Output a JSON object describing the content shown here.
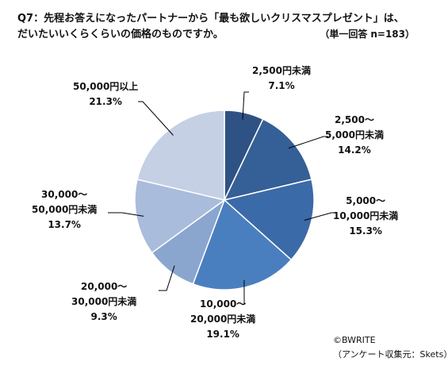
{
  "title_lines": [
    "Q7：先程お答えになったパートナーから「最も欲しいクリスマスプレゼント」は、",
    "だいたいいくらくらいの価格のものですか。"
  ],
  "note": {
    "type": "（単一回答",
    "n": "n=183）"
  },
  "chart_data": {
    "type": "pie",
    "title": "",
    "slices": [
      {
        "label_lines": [
          "2,500円未満"
        ],
        "value": 7.1,
        "value_label": "7.1%",
        "color": "#2f5284"
      },
      {
        "label_lines": [
          "2,500～",
          "5,000円未満"
        ],
        "value": 14.2,
        "value_label": "14.2%",
        "color": "#355f97"
      },
      {
        "label_lines": [
          "5,000～",
          "10,000円未満"
        ],
        "value": 15.3,
        "value_label": "15.3%",
        "color": "#3b6aa8"
      },
      {
        "label_lines": [
          "10,000～",
          "20,000円未満"
        ],
        "value": 19.1,
        "value_label": "19.1%",
        "color": "#4a7fbf"
      },
      {
        "label_lines": [
          "20,000～",
          "30,000円未満"
        ],
        "value": 9.3,
        "value_label": "9.3%",
        "color": "#8aa6cf"
      },
      {
        "label_lines": [
          "30,000～",
          "50,000円未満"
        ],
        "value": 13.7,
        "value_label": "13.7%",
        "color": "#aabcdb"
      },
      {
        "label_lines": [
          "50,000円以上"
        ],
        "value": 21.3,
        "value_label": "21.3%",
        "color": "#c5d0e4"
      }
    ]
  },
  "footer": {
    "copyright": "©BWRITE",
    "source": "（アンケート収集元：Skets）"
  }
}
